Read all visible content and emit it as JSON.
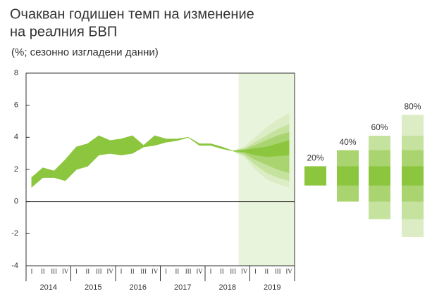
{
  "chart_data": {
    "type": "fan",
    "title": [
      "Очакван годишен темп на изменение",
      "на реалния БВП"
    ],
    "subtitle": "(%; сезонно изгладени данни)",
    "categories": [
      "I",
      "II",
      "III",
      "IV",
      "I",
      "II",
      "III",
      "IV",
      "I",
      "II",
      "III",
      "IV",
      "I",
      "II",
      "III",
      "IV",
      "I",
      "II",
      "III",
      "IV",
      "I",
      "II",
      "III",
      "IV"
    ],
    "years": [
      "2014",
      "2015",
      "2016",
      "2017",
      "2018",
      "2019"
    ],
    "ylim": [
      -4,
      8
    ],
    "yticks": [
      -4,
      -2,
      0,
      2,
      4,
      6,
      8
    ],
    "history": {
      "color": "#8cc63f",
      "upper": [
        1.5,
        2.1,
        1.9,
        2.6,
        3.4,
        3.6,
        4.1,
        3.8,
        3.9,
        4.1,
        3.5,
        4.1,
        3.9,
        3.9,
        4.0,
        3.6,
        3.6,
        3.4,
        3.15,
        null,
        null,
        null,
        null,
        null
      ],
      "lower": [
        0.9,
        1.5,
        1.5,
        1.3,
        2.0,
        2.2,
        2.9,
        3.0,
        2.9,
        3.0,
        3.4,
        3.5,
        3.7,
        3.8,
        4.0,
        3.5,
        3.5,
        3.3,
        3.15,
        null,
        null,
        null,
        null,
        null
      ]
    },
    "forecast_color": "#e9f4dc",
    "bands": [
      {
        "label": "80%",
        "color": "#dcedc5",
        "range": [
          -2.2,
          5.4
        ],
        "upper": [
          null,
          null,
          null,
          null,
          null,
          null,
          null,
          null,
          null,
          null,
          null,
          null,
          null,
          null,
          null,
          null,
          null,
          null,
          3.15,
          3.4,
          4.0,
          4.6,
          5.1,
          5.5
        ],
        "lower": [
          null,
          null,
          null,
          null,
          null,
          null,
          null,
          null,
          null,
          null,
          null,
          null,
          null,
          null,
          null,
          null,
          null,
          null,
          3.15,
          2.8,
          2.0,
          1.4,
          1.1,
          0.9
        ]
      },
      {
        "label": "60%",
        "color": "#c5e29f",
        "range": [
          -1.1,
          4.1
        ],
        "upper": [
          null,
          null,
          null,
          null,
          null,
          null,
          null,
          null,
          null,
          null,
          null,
          null,
          null,
          null,
          null,
          null,
          null,
          null,
          3.15,
          3.3,
          3.7,
          4.1,
          4.5,
          4.8
        ],
        "lower": [
          null,
          null,
          null,
          null,
          null,
          null,
          null,
          null,
          null,
          null,
          null,
          null,
          null,
          null,
          null,
          null,
          null,
          null,
          3.15,
          2.9,
          2.3,
          1.8,
          1.5,
          1.3
        ]
      },
      {
        "label": "40%",
        "color": "#a9d46f",
        "range": [
          0,
          3.2
        ],
        "upper": [
          null,
          null,
          null,
          null,
          null,
          null,
          null,
          null,
          null,
          null,
          null,
          null,
          null,
          null,
          null,
          null,
          null,
          null,
          3.15,
          3.25,
          3.5,
          3.8,
          4.1,
          4.3
        ],
        "lower": [
          null,
          null,
          null,
          null,
          null,
          null,
          null,
          null,
          null,
          null,
          null,
          null,
          null,
          null,
          null,
          null,
          null,
          null,
          3.15,
          3.0,
          2.6,
          2.3,
          2.0,
          1.8
        ]
      },
      {
        "label": "20%",
        "color": "#8cc63f",
        "range": [
          1,
          2.2
        ],
        "upper": [
          null,
          null,
          null,
          null,
          null,
          null,
          null,
          null,
          null,
          null,
          null,
          null,
          null,
          null,
          null,
          null,
          null,
          null,
          3.15,
          3.2,
          3.3,
          3.4,
          3.6,
          3.8
        ],
        "lower": [
          null,
          null,
          null,
          null,
          null,
          null,
          null,
          null,
          null,
          null,
          null,
          null,
          null,
          null,
          null,
          null,
          null,
          null,
          3.15,
          3.1,
          2.9,
          2.8,
          2.85,
          2.9
        ]
      }
    ]
  }
}
